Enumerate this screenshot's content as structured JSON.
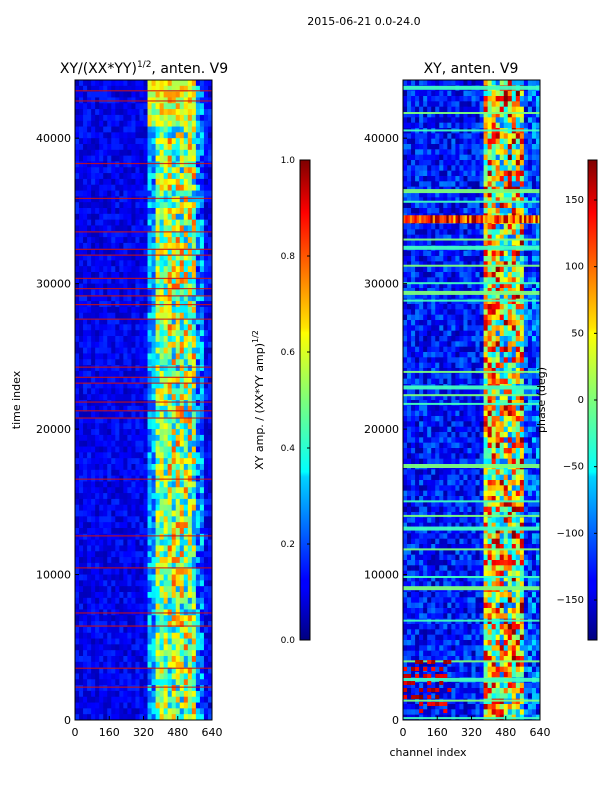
{
  "suptitle": "2015-06-21 0.0-24.0",
  "chart_data": [
    {
      "type": "heatmap",
      "title": "XY/(XX*YY)^{1/2}, anten. V9",
      "title_main": "XY/(XX*YY)",
      "title_sup": "1/2",
      "title_tail": ", anten. V9",
      "xlabel": "",
      "ylabel": "time index",
      "xlim": [
        0,
        640
      ],
      "ylim": [
        0,
        44000
      ],
      "xticks": [
        "0",
        "160",
        "320",
        "480",
        "640"
      ],
      "yticks": [
        "0",
        "10000",
        "20000",
        "30000",
        "40000"
      ],
      "colormap": "jet",
      "colorbar": {
        "label": "XY amp. / (XX*YY amp)^{1/2}",
        "label_main": "XY amp. / (XX*YY amp)",
        "label_sup": "1/2",
        "vmin": 0.0,
        "vmax": 1.0,
        "ticks": [
          "0.0",
          "0.2",
          "0.4",
          "0.6",
          "0.8",
          "1.0"
        ]
      }
    },
    {
      "type": "heatmap",
      "title": "XY, anten. V9",
      "xlabel": "channel index",
      "ylabel": "",
      "xlim": [
        0,
        640
      ],
      "ylim": [
        0,
        44000
      ],
      "xticks": [
        "0",
        "160",
        "320",
        "480",
        "640"
      ],
      "yticks": [
        "0",
        "10000",
        "20000",
        "30000",
        "40000"
      ],
      "colormap": "jet",
      "colorbar": {
        "label": "phase (deg)",
        "vmin": -180,
        "vmax": 180,
        "ticks": [
          "−150",
          "−100",
          "−50",
          "0",
          "50",
          "100",
          "150"
        ]
      }
    }
  ]
}
